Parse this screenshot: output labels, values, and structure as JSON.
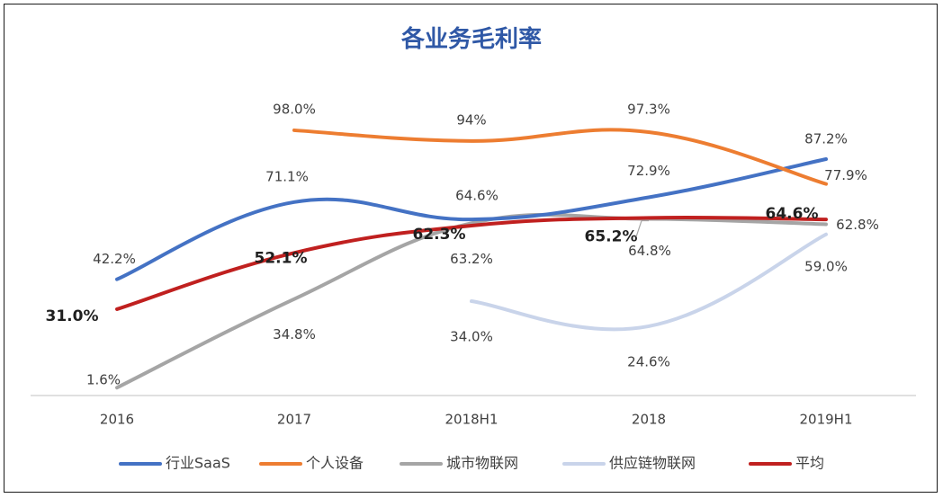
{
  "chart_data": {
    "type": "line",
    "title": "各业务毛利率",
    "categories": [
      "2016",
      "2017",
      "2018H1",
      "2018",
      "2019H1"
    ],
    "series": [
      {
        "name": "行业SaaS",
        "color": "#4472c4",
        "values": [
          42.2,
          71.1,
          64.6,
          72.9,
          87.2
        ],
        "labels": [
          "42.2%",
          "71.1%",
          "64.6%",
          "72.9%",
          "87.2%"
        ]
      },
      {
        "name": "个人设备",
        "color": "#ed7d31",
        "values": [
          null,
          98.0,
          94.0,
          97.3,
          77.9
        ],
        "labels": [
          null,
          "98.0%",
          "94%",
          "97.3%",
          "77.9%"
        ]
      },
      {
        "name": "城市物联网",
        "color": "#a5a5a5",
        "values": [
          1.6,
          34.8,
          63.2,
          64.8,
          62.8
        ],
        "labels": [
          "1.6%",
          "34.8%",
          "63.2%",
          "64.8%",
          "62.8%"
        ]
      },
      {
        "name": "供应链物联网",
        "color": "#c9d4ea",
        "values": [
          null,
          null,
          34.0,
          24.6,
          59.0
        ],
        "labels": [
          null,
          null,
          "34.0%",
          "24.6%",
          "59.0%"
        ]
      },
      {
        "name": "平均",
        "color": "#c0201f",
        "values": [
          31.0,
          52.1,
          62.3,
          65.2,
          64.6
        ],
        "labels": [
          "31.0%",
          "52.1%",
          "62.3%",
          "65.2%",
          "64.6%"
        ],
        "bold_labels": true
      }
    ],
    "legend_position": "bottom",
    "grid": false,
    "ylim": [
      0,
      100
    ]
  }
}
